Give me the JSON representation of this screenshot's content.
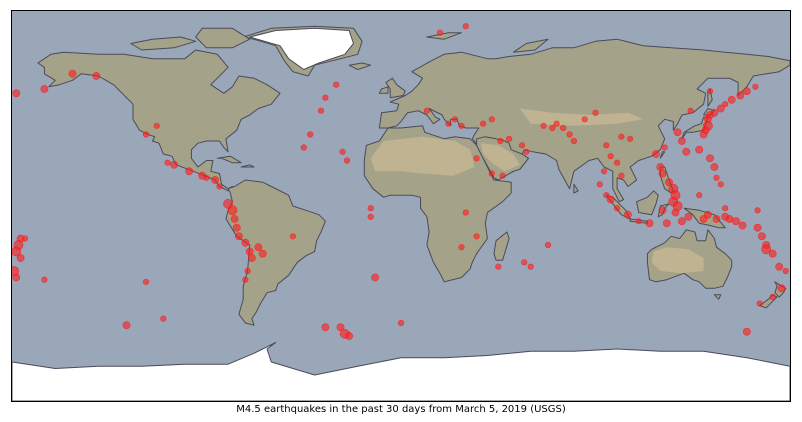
{
  "caption": "M4.5 earthquakes in the past 30 days from March 5, 2019 (USGS)",
  "colors": {
    "ocean": "#9aa7b9",
    "land": "#a4a389",
    "desert": "#c9b896",
    "ice": "#ffffff",
    "coast": "#4a4a5a",
    "quake": "#ff1a1a"
  },
  "chart_data": {
    "type": "scatter",
    "projection": "equirectangular",
    "xlim": [
      -180,
      180
    ],
    "ylim": [
      -90,
      90
    ],
    "series": [
      {
        "points": [
          [
            -152,
            61,
            1
          ],
          [
            -165,
            54,
            1
          ],
          [
            -178,
            52,
            1
          ],
          [
            -141,
            60,
            1
          ],
          [
            -118,
            33,
            0
          ],
          [
            -113,
            37,
            0
          ],
          [
            -105,
            19,
            1
          ],
          [
            -98,
            16,
            1
          ],
          [
            -92,
            14,
            1
          ],
          [
            -90,
            13,
            0
          ],
          [
            -86,
            12,
            1
          ],
          [
            -84,
            9,
            0
          ],
          [
            -80,
            1,
            2
          ],
          [
            -78,
            -2,
            2
          ],
          [
            -77,
            -6,
            1
          ],
          [
            -76,
            -10,
            1
          ],
          [
            -75,
            -14,
            1
          ],
          [
            -72,
            -17,
            1
          ],
          [
            -70,
            -21,
            1
          ],
          [
            -69,
            -24,
            1
          ],
          [
            -71,
            -30,
            0
          ],
          [
            -72,
            -34,
            0
          ],
          [
            -66,
            -19,
            1
          ],
          [
            -64,
            -22,
            1
          ],
          [
            -176,
            -15,
            1
          ],
          [
            -177,
            -18,
            2
          ],
          [
            -178,
            -21,
            2
          ],
          [
            -176,
            -24,
            1
          ],
          [
            -179,
            -30,
            2
          ],
          [
            -178,
            -33,
            1
          ],
          [
            -174,
            -15,
            0
          ],
          [
            -165,
            -34,
            0
          ],
          [
            -118,
            -35,
            0
          ],
          [
            -127,
            -55,
            1
          ],
          [
            -110,
            -52,
            0
          ],
          [
            -30,
            56,
            0
          ],
          [
            -35,
            50,
            0
          ],
          [
            -37,
            44,
            0
          ],
          [
            -42,
            33,
            0
          ],
          [
            -45,
            27,
            0
          ],
          [
            -27,
            25,
            0
          ],
          [
            -25,
            21,
            0
          ],
          [
            -14,
            -5,
            0
          ],
          [
            -12,
            -33,
            1
          ],
          [
            -14,
            -1,
            0
          ],
          [
            -35,
            -56,
            1
          ],
          [
            -28,
            -56,
            1
          ],
          [
            -26,
            -59,
            2
          ],
          [
            -24,
            -60,
            1
          ],
          [
            0,
            -54,
            0
          ],
          [
            18,
            80,
            0
          ],
          [
            30,
            83,
            0
          ],
          [
            12,
            44,
            0
          ],
          [
            22,
            38,
            0
          ],
          [
            25,
            40,
            0
          ],
          [
            28,
            37,
            0
          ],
          [
            38,
            38,
            0
          ],
          [
            42,
            40,
            0
          ],
          [
            46,
            30,
            0
          ],
          [
            50,
            31,
            0
          ],
          [
            56,
            28,
            0
          ],
          [
            58,
            25,
            0
          ],
          [
            66,
            37,
            0
          ],
          [
            70,
            36,
            0
          ],
          [
            72,
            38,
            0
          ],
          [
            75,
            36,
            0
          ],
          [
            78,
            33,
            0
          ],
          [
            80,
            30,
            0
          ],
          [
            85,
            40,
            0
          ],
          [
            90,
            43,
            0
          ],
          [
            95,
            28,
            0
          ],
          [
            97,
            23,
            0
          ],
          [
            100,
            20,
            0
          ],
          [
            102,
            14,
            0
          ],
          [
            102,
            32,
            0
          ],
          [
            106,
            31,
            0
          ],
          [
            118,
            24,
            1
          ],
          [
            120,
            18,
            1
          ],
          [
            121,
            15,
            1
          ],
          [
            124,
            11,
            1
          ],
          [
            126,
            8,
            2
          ],
          [
            127,
            5,
            2
          ],
          [
            126,
            2,
            2
          ],
          [
            128,
            0,
            2
          ],
          [
            127,
            -3,
            1
          ],
          [
            121,
            -2,
            1
          ],
          [
            123,
            -8,
            1
          ],
          [
            115,
            -8,
            1
          ],
          [
            110,
            -7,
            0
          ],
          [
            105,
            -4,
            1
          ],
          [
            100,
            -1,
            0
          ],
          [
            97,
            3,
            1
          ],
          [
            95,
            5,
            0
          ],
          [
            92,
            10,
            0
          ],
          [
            94,
            16,
            0
          ],
          [
            130,
            -7,
            1
          ],
          [
            133,
            -5,
            1
          ],
          [
            140,
            -6,
            1
          ],
          [
            142,
            -4,
            1
          ],
          [
            146,
            -6,
            1
          ],
          [
            150,
            -5,
            1
          ],
          [
            152,
            -6,
            1
          ],
          [
            155,
            -7,
            1
          ],
          [
            158,
            -9,
            1
          ],
          [
            165,
            -10,
            1
          ],
          [
            167,
            -14,
            1
          ],
          [
            169,
            -18,
            1
          ],
          [
            169,
            -20,
            2
          ],
          [
            172,
            -22,
            1
          ],
          [
            175,
            -28,
            1
          ],
          [
            178,
            -30,
            0
          ],
          [
            176,
            -38,
            1
          ],
          [
            172,
            -42,
            0
          ],
          [
            166,
            -45,
            0
          ],
          [
            160,
            -58,
            1
          ],
          [
            142,
            40,
            1
          ],
          [
            142,
            37,
            2
          ],
          [
            141,
            35,
            1
          ],
          [
            140,
            33,
            1
          ],
          [
            143,
            42,
            1
          ],
          [
            145,
            43,
            1
          ],
          [
            148,
            45,
            1
          ],
          [
            150,
            47,
            0
          ],
          [
            153,
            49,
            1
          ],
          [
            157,
            51,
            1
          ],
          [
            160,
            53,
            1
          ],
          [
            164,
            55,
            0
          ],
          [
            138,
            26,
            1
          ],
          [
            132,
            25,
            1
          ],
          [
            130,
            30,
            1
          ],
          [
            128,
            34,
            1
          ],
          [
            122,
            27,
            0
          ],
          [
            143,
            22,
            1
          ],
          [
            145,
            18,
            1
          ],
          [
            146,
            13,
            0
          ],
          [
            148,
            10,
            0
          ],
          [
            138,
            5,
            0
          ],
          [
            150,
            -1,
            0
          ],
          [
            165,
            -2,
            0
          ],
          [
            143,
            53,
            0
          ],
          [
            134,
            44,
            0
          ],
          [
            30,
            -3,
            0
          ],
          [
            28,
            -19,
            0
          ],
          [
            35,
            -14,
            0
          ],
          [
            45,
            -28,
            0
          ],
          [
            57,
            -26,
            0
          ],
          [
            60,
            -28,
            0
          ],
          [
            68,
            -18,
            0
          ],
          [
            35,
            22,
            0
          ],
          [
            42,
            15,
            0
          ],
          [
            47,
            14,
            0
          ],
          [
            -50,
            -14,
            0
          ],
          [
            -108,
            20,
            0
          ]
        ]
      }
    ]
  }
}
